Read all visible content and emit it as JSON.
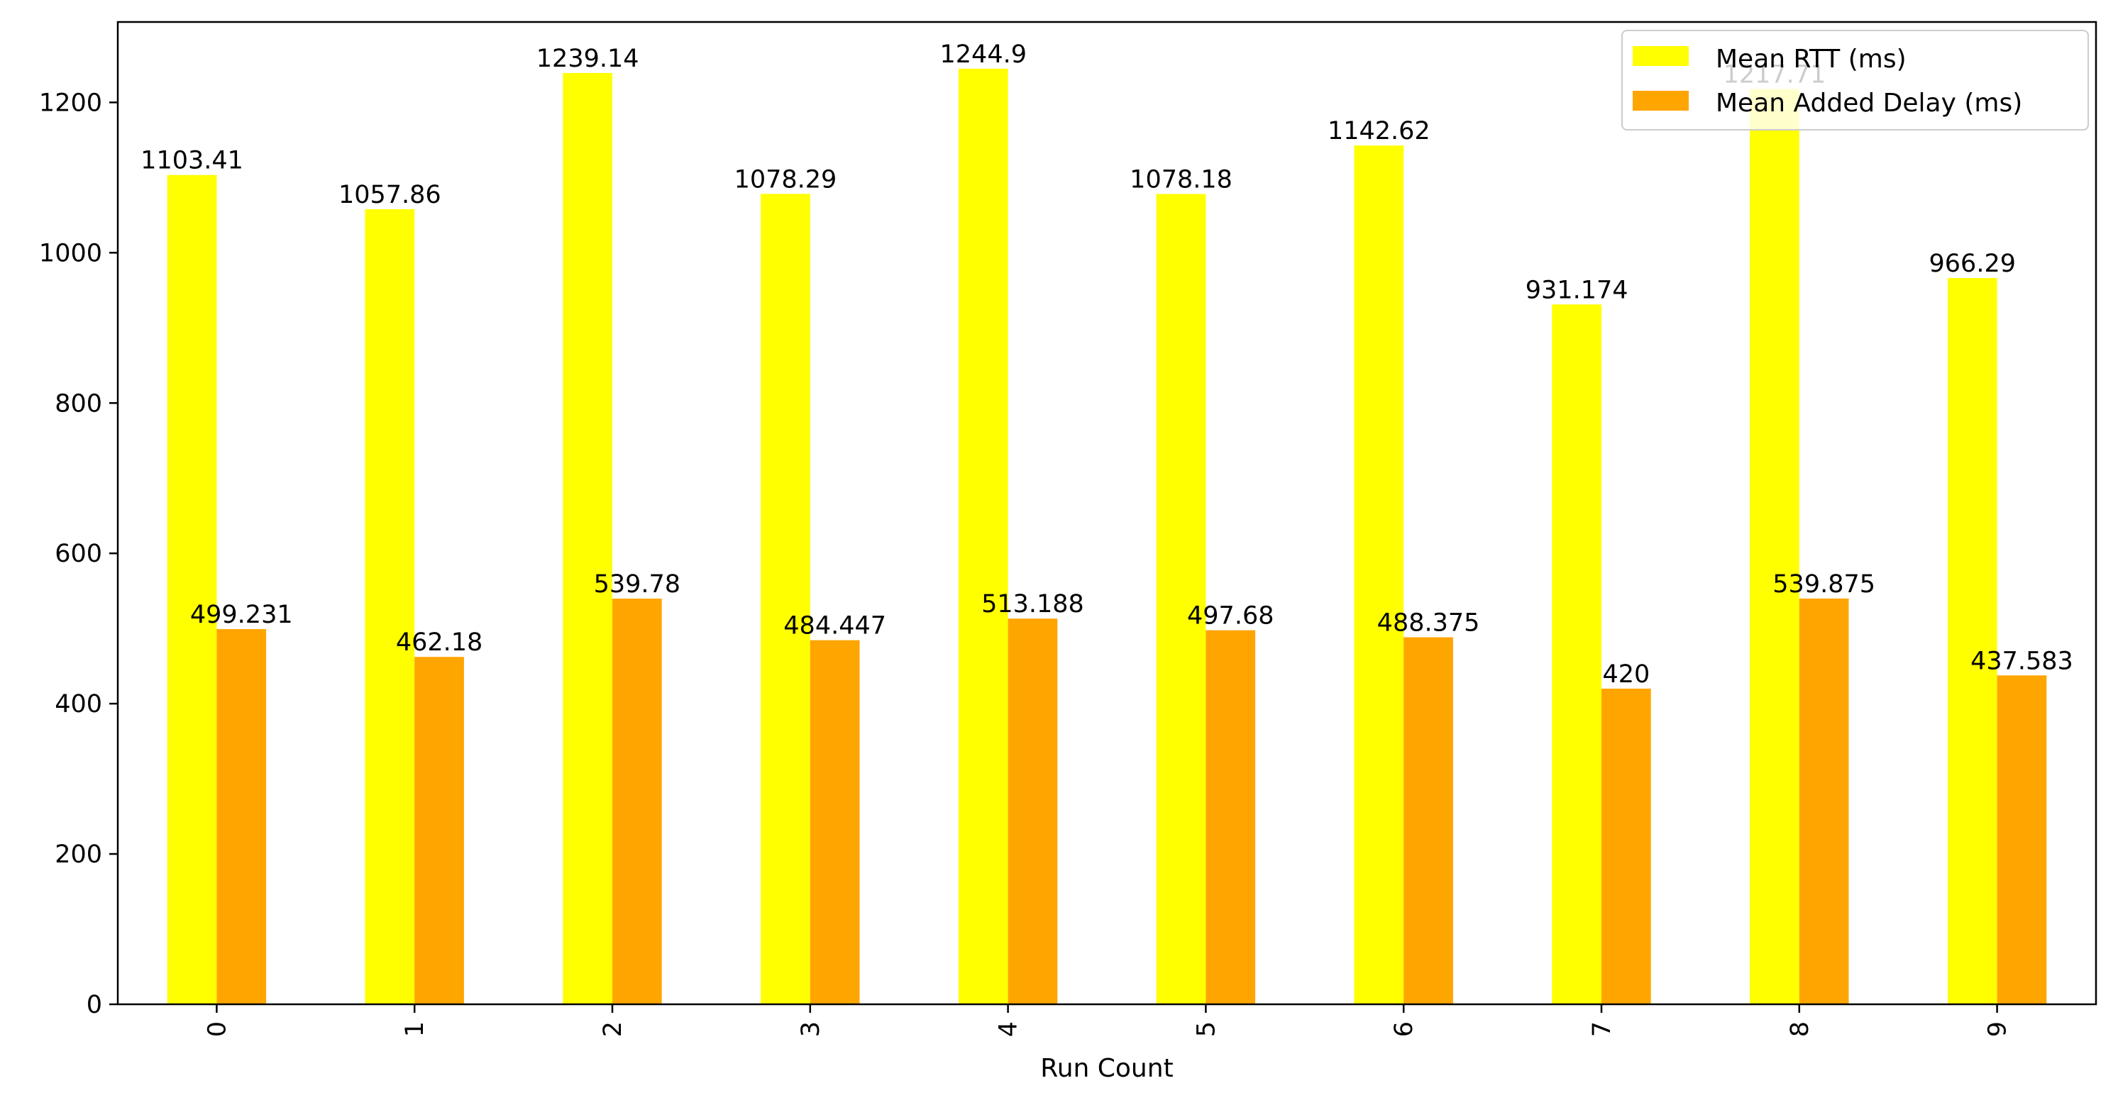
{
  "chart_data": {
    "type": "bar",
    "title": "",
    "xlabel": "Run Count",
    "ylabel": "",
    "categories": [
      "0",
      "1",
      "2",
      "3",
      "4",
      "5",
      "6",
      "7",
      "8",
      "9"
    ],
    "series": [
      {
        "name": "Mean RTT (ms)",
        "color": "#ffff00",
        "values": [
          1103.41,
          1057.86,
          1239.14,
          1078.29,
          1244.9,
          1078.18,
          1142.62,
          931.174,
          1217.71,
          966.29
        ],
        "labels": [
          "1103.41",
          "1057.86",
          "1239.14",
          "1078.29",
          "1244.9",
          "1078.18",
          "1142.62",
          "931.174",
          "1217.71",
          "966.29"
        ]
      },
      {
        "name": "Mean Added Delay (ms)",
        "color": "#ffa500",
        "values": [
          499.231,
          462.18,
          539.78,
          484.447,
          513.188,
          497.68,
          488.375,
          420,
          539.875,
          437.583
        ],
        "labels": [
          "499.231",
          "462.18",
          "539.78",
          "484.447",
          "513.188",
          "497.68",
          "488.375",
          "420",
          "539.875",
          "437.583"
        ]
      }
    ],
    "ylim": [
      0,
      1307
    ],
    "yticks": [
      "0",
      "200",
      "400",
      "600",
      "800",
      "1000",
      "1200"
    ],
    "grid": false,
    "legend": "top-right",
    "xtick_rotation": "vertical"
  }
}
